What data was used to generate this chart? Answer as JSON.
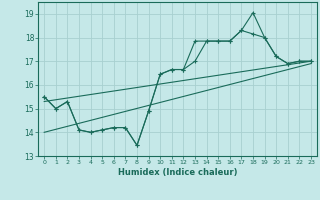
{
  "xlabel": "Humidex (Indice chaleur)",
  "background_color": "#c5e8e8",
  "grid_color": "#a8d0d0",
  "line_color": "#1a6b5a",
  "ylim": [
    13,
    19.5
  ],
  "xlim": [
    -0.5,
    23.5
  ],
  "yticks": [
    13,
    14,
    15,
    16,
    17,
    18,
    19
  ],
  "xticks": [
    0,
    1,
    2,
    3,
    4,
    5,
    6,
    7,
    8,
    9,
    10,
    11,
    12,
    13,
    14,
    15,
    16,
    17,
    18,
    19,
    20,
    21,
    22,
    23
  ],
  "line1_x": [
    0,
    1,
    2,
    3,
    4,
    5,
    6,
    7,
    8,
    9,
    10,
    11,
    12,
    13,
    14,
    15,
    16,
    17,
    18,
    19,
    20,
    21,
    22,
    23
  ],
  "line1_y": [
    15.5,
    15.0,
    15.3,
    14.1,
    14.0,
    14.1,
    14.2,
    14.2,
    13.45,
    14.9,
    16.45,
    16.65,
    16.65,
    17.0,
    17.85,
    17.85,
    17.85,
    18.3,
    18.15,
    18.0,
    17.2,
    16.9,
    17.0,
    17.0
  ],
  "line2_x": [
    0,
    1,
    2,
    3,
    4,
    5,
    6,
    7,
    8,
    9,
    10,
    11,
    12,
    13,
    14,
    15,
    16,
    17,
    18,
    19,
    20,
    21,
    22,
    23
  ],
  "line2_y": [
    15.5,
    15.0,
    15.3,
    14.1,
    14.0,
    14.1,
    14.2,
    14.2,
    13.45,
    14.9,
    16.45,
    16.65,
    16.65,
    17.85,
    17.85,
    17.85,
    17.85,
    18.3,
    19.05,
    18.0,
    17.2,
    16.9,
    17.0,
    17.0
  ],
  "trend1_x": [
    0,
    23
  ],
  "trend1_y": [
    15.3,
    17.0
  ],
  "trend2_x": [
    0,
    23
  ],
  "trend2_y": [
    14.0,
    16.9
  ]
}
